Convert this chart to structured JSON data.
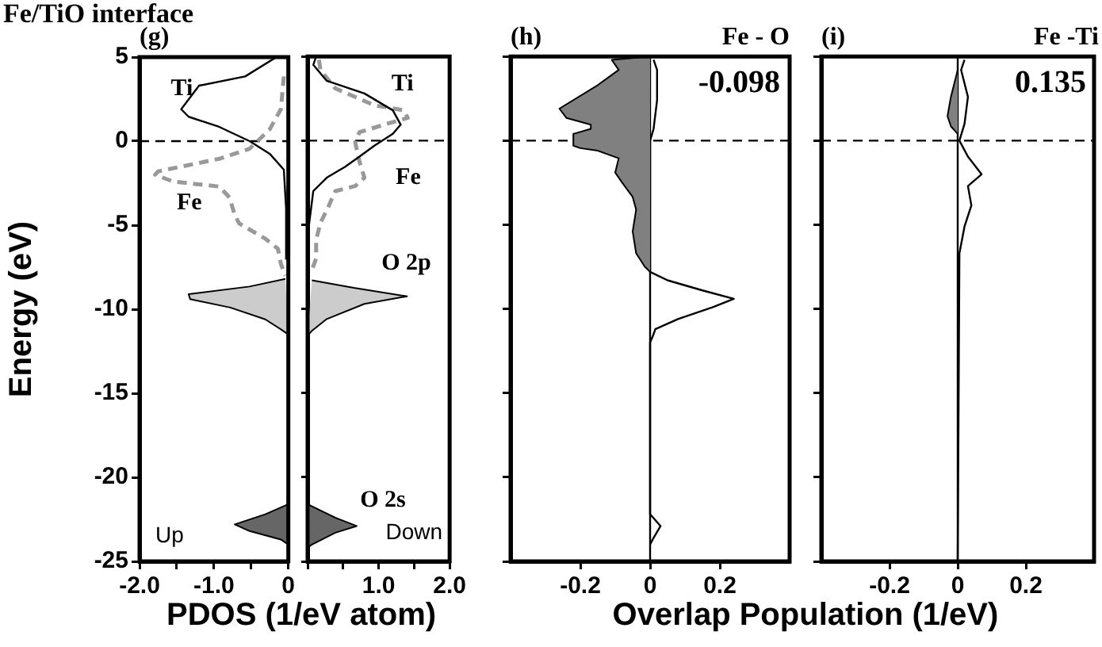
{
  "chart_data": [
    {
      "type": "line",
      "title": "Fe/TiO interface",
      "subtitle": "(g)",
      "xlabel": "PDOS (1/eV atom)",
      "ylabel": "Energy (eV)",
      "annotations": [
        "Up"
      ],
      "marker": "none",
      "xlim": [
        -2,
        0
      ],
      "xticks": [
        {
          "value": -2,
          "label": "-2.0"
        },
        {
          "value": -1.5,
          "label": null
        },
        {
          "value": -1,
          "label": "-1.0"
        },
        {
          "value": -0.5,
          "label": null
        },
        {
          "value": 0,
          "label": "0"
        }
      ],
      "ylim": [
        -25,
        5
      ],
      "yticks": [
        -25,
        -20,
        -15,
        -10,
        -5,
        0,
        5
      ],
      "ref_lines": [
        {
          "axis": "y",
          "value": 0,
          "line_style": "dashed",
          "color": "#000000"
        }
      ],
      "series": [
        {
          "type": "area",
          "color": "#cccccc",
          "x": [
            -0.04,
            -0.52,
            -1.34,
            -1.32,
            -0.78,
            -0.31,
            -0.1,
            0
          ],
          "values": [
            -8.2,
            -8.65,
            -9.1,
            -9.4,
            -9.9,
            -10.6,
            -11.2,
            -11.5
          ]
        },
        {
          "type": "area",
          "color": "#666666",
          "x": [
            0,
            -0.31,
            -0.72,
            -0.52,
            -0.1,
            0
          ],
          "values": [
            -21.6,
            -22.2,
            -22.8,
            -23.2,
            -23.7,
            -24.0
          ]
        },
        {
          "name": "Ti",
          "type": "line",
          "color": "#000000",
          "x": [
            -0.16,
            -0.58,
            -1.2,
            -1.44,
            -1.34,
            -0.93,
            -0.52,
            -0.25,
            -0.06,
            -0.03,
            -0.03
          ],
          "values": [
            5,
            3.85,
            3.3,
            1.9,
            1.45,
            0.85,
            0,
            -0.75,
            -1.7,
            -4,
            -7
          ]
        },
        {
          "name": "Fe",
          "type": "line",
          "line_style": "dashed",
          "color": "#999999",
          "x": [
            -0.06,
            -0.1,
            -0.25,
            -0.52,
            -0.93,
            -1.75,
            -1.79,
            -1.55,
            -0.93,
            -0.79,
            -0.72,
            -0.66,
            -0.31,
            -0.14,
            -0.1,
            -0.04
          ],
          "values": [
            3.85,
            1.9,
            0.7,
            -0.45,
            -1.05,
            -1.8,
            -2.0,
            -2.4,
            -2.7,
            -3.35,
            -4.4,
            -4.9,
            -5.8,
            -6.4,
            -7.3,
            -8.0
          ]
        }
      ]
    },
    {
      "type": "line",
      "annotations": [
        "Down"
      ],
      "marker": "none",
      "tick_labels": "x",
      "xlim": [
        0,
        2
      ],
      "xticks": [
        {
          "value": 0,
          "label": null
        },
        {
          "value": 0.5,
          "label": null
        },
        {
          "value": 1,
          "label": "1.0"
        },
        {
          "value": 1.5,
          "label": null
        },
        {
          "value": 2,
          "label": "2.0"
        }
      ],
      "ylim": [
        -25,
        5
      ],
      "yticks": [
        -25,
        -20,
        -15,
        -10,
        -5,
        0,
        5
      ],
      "ref_lines": [
        {
          "axis": "y",
          "value": 0,
          "line_style": "dashed",
          "color": "#000000"
        }
      ],
      "series": [
        {
          "name": "O 2p",
          "type": "area",
          "color": "#cccccc",
          "x": [
            0.06,
            0.65,
            1.4,
            0.8,
            0.27,
            0.06,
            0
          ],
          "values": [
            -8.3,
            -8.75,
            -9.25,
            -9.7,
            -10.6,
            -11.3,
            -11.6
          ]
        },
        {
          "name": "O 2s",
          "type": "area",
          "color": "#666666",
          "x": [
            0,
            0.39,
            0.69,
            0.39,
            0.06,
            0
          ],
          "values": [
            -21.6,
            -22.4,
            -22.9,
            -23.3,
            -24.0,
            -24.2
          ]
        },
        {
          "name": "Ti",
          "type": "line",
          "color": "#000000",
          "x": [
            0.12,
            0.08,
            0.27,
            0.8,
            1.2,
            1.31,
            1.2,
            0.94,
            0.73,
            0.53,
            0.27,
            0.08,
            0.02,
            0.02
          ],
          "values": [
            5,
            4.5,
            3.55,
            2.8,
            1.8,
            0.95,
            0.4,
            -0.3,
            -0.95,
            -1.55,
            -2.2,
            -3.0,
            -5,
            -7
          ]
        },
        {
          "name": "Fe",
          "type": "line",
          "line_style": "dashed",
          "color": "#999999",
          "x": [
            0.16,
            0.18,
            0.39,
            0.94,
            1.35,
            1.41,
            1.08,
            0.73,
            0.67,
            0.73,
            0.8,
            0.67,
            0.39,
            0.29,
            0.18,
            0.12,
            0.12,
            0.06
          ],
          "values": [
            4.8,
            4.2,
            3.1,
            2.1,
            1.8,
            1.35,
            0.95,
            0.5,
            -0.1,
            -1.25,
            -2.2,
            -2.7,
            -3.0,
            -3.95,
            -4.9,
            -5.9,
            -7.0,
            -7.7
          ]
        }
      ]
    },
    {
      "type": "line",
      "title": "(h)",
      "subtitle": "Fe - O",
      "xlabel": "Overlap Population (1/eV)",
      "annotations": [
        "-0.098"
      ],
      "marker": "none",
      "tick_labels": "x",
      "xlim": [
        -0.4,
        0.4
      ],
      "xticks": [
        -0.2,
        0,
        0.2
      ],
      "ylim": [
        -25,
        5
      ],
      "yticks": [
        -25,
        -20,
        -15,
        -10,
        -5,
        0,
        5
      ],
      "ref_lines": [
        {
          "axis": "y",
          "value": 0,
          "line_style": "dashed",
          "color": "#000000"
        },
        {
          "axis": "x",
          "value": 0,
          "line_style": "solid",
          "color": "#000000"
        }
      ],
      "series": [
        {
          "type": "area",
          "color": "#808080",
          "x": [
            0,
            -0.11,
            -0.09,
            -0.15,
            -0.26,
            -0.24,
            -0.17,
            -0.17,
            -0.22,
            -0.22,
            -0.2,
            -0.15,
            -0.09,
            -0.1,
            -0.08,
            -0.05,
            -0.04,
            -0.05,
            -0.04,
            -0.015,
            0
          ],
          "values": [
            5,
            4.8,
            4.2,
            3.3,
            1.9,
            1.35,
            0.95,
            0.7,
            0.4,
            -0.3,
            -0.45,
            -0.6,
            -1.05,
            -1.9,
            -2.5,
            -3.35,
            -4.1,
            -5.4,
            -6.7,
            -7.5,
            -7.8
          ]
        },
        {
          "type": "line",
          "color": "#000000",
          "x": [
            0.01,
            0.02,
            0.02,
            0.01,
            0,
            0,
            0.05,
            0.15,
            0.24,
            0.18,
            0.08,
            0.015,
            0.01,
            0,
            0,
            0.03,
            0.01,
            0
          ],
          "values": [
            4.8,
            4.2,
            2.4,
            0.7,
            0,
            -7.8,
            -8.3,
            -8.9,
            -9.4,
            -9.9,
            -10.6,
            -11.2,
            -11.5,
            -12,
            -22.2,
            -22.9,
            -23.6,
            -24
          ]
        }
      ]
    },
    {
      "type": "line",
      "title": "(i)",
      "subtitle": "Fe -Ti",
      "annotations": [
        "0.135"
      ],
      "marker": "none",
      "tick_labels": "x",
      "xlim": [
        -0.4,
        0.4
      ],
      "xticks": [
        -0.2,
        0,
        0.2
      ],
      "ylim": [
        -25,
        5
      ],
      "yticks": [
        -25,
        -20,
        -15,
        -10,
        -5,
        0,
        5
      ],
      "ref_lines": [
        {
          "axis": "y",
          "value": 0,
          "line_style": "dashed",
          "color": "#000000"
        },
        {
          "axis": "x",
          "value": 0,
          "line_style": "solid",
          "color": "#000000"
        }
      ],
      "series": [
        {
          "type": "area",
          "color": "#808080",
          "x": [
            0,
            -0.02,
            -0.03,
            -0.02,
            0
          ],
          "values": [
            4.2,
            2.6,
            1.45,
            0.85,
            0.4
          ]
        },
        {
          "type": "line",
          "color": "#000000",
          "x": [
            0.02,
            0.01,
            0.03,
            0.02,
            0.005,
            0.03,
            0.07,
            0.03,
            0.04,
            0.02,
            0.005,
            0
          ],
          "values": [
            4.8,
            4.2,
            2.6,
            1.0,
            0,
            -0.95,
            -2.0,
            -2.7,
            -3.85,
            -5.1,
            -6.7,
            -25
          ]
        }
      ]
    }
  ]
}
